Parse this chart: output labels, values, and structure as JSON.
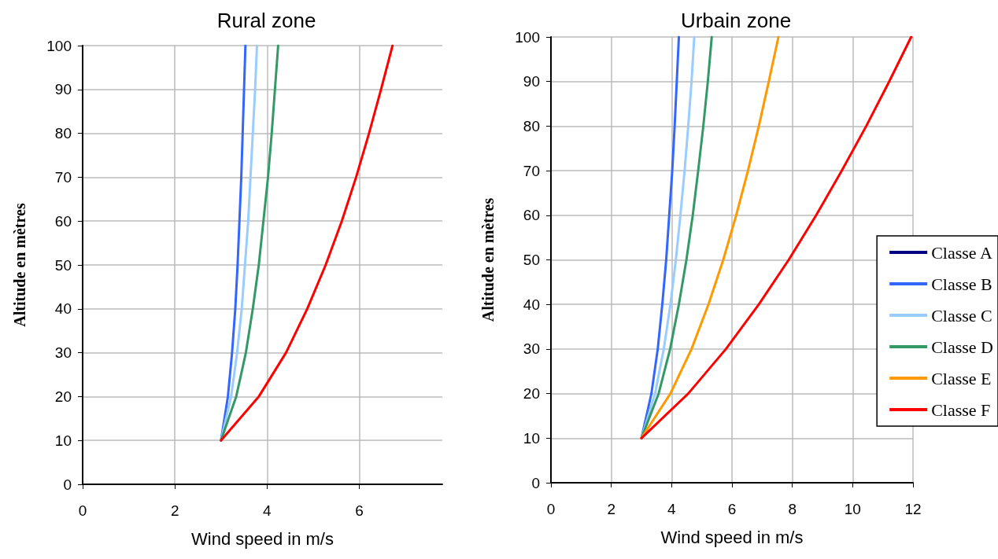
{
  "chart_data": [
    {
      "type": "line",
      "title": "Rural zone",
      "xlabel": "Wind speed in m/s",
      "ylabel": "Altitude en mètres",
      "xlim": [
        0,
        7.8
      ],
      "xticks": [
        0,
        2,
        4,
        6
      ],
      "ylim": [
        0,
        100
      ],
      "yticks": [
        0,
        10,
        20,
        30,
        40,
        50,
        60,
        70,
        80,
        90,
        100
      ],
      "grid": true,
      "legend": false,
      "marker": "none",
      "line_style": "solid",
      "series": [
        {
          "color": "#3366ff",
          "x": [
            3,
            3.15,
            3.24,
            3.31,
            3.36,
            3.4,
            3.44,
            3.47,
            3.5,
            3.53
          ],
          "values": [
            10,
            20,
            30,
            40,
            50,
            60,
            70,
            80,
            90,
            100
          ]
        },
        {
          "color": "#99ccff",
          "x": [
            3,
            3.22,
            3.35,
            3.45,
            3.52,
            3.59,
            3.64,
            3.69,
            3.74,
            3.78
          ],
          "values": [
            10,
            20,
            30,
            40,
            50,
            60,
            70,
            80,
            90,
            100
          ]
        },
        {
          "color": "#339966",
          "x": [
            3,
            3.33,
            3.54,
            3.69,
            3.82,
            3.92,
            4.02,
            4.1,
            4.17,
            4.24
          ],
          "values": [
            10,
            20,
            30,
            40,
            50,
            60,
            70,
            80,
            90,
            100
          ]
        },
        {
          "color": "#ff0000",
          "x": [
            3,
            3.82,
            4.41,
            4.87,
            5.27,
            5.62,
            5.93,
            6.21,
            6.47,
            6.72
          ],
          "values": [
            10,
            20,
            30,
            40,
            50,
            60,
            70,
            80,
            90,
            100
          ]
        }
      ]
    },
    {
      "type": "line",
      "title": "Urbain zone",
      "xlabel": "Wind speed in m/s",
      "ylabel": "Altitude en mètres",
      "xlim": [
        0,
        12
      ],
      "xticks": [
        0,
        2,
        4,
        6,
        8,
        10,
        12
      ],
      "ylim": [
        0,
        100
      ],
      "yticks": [
        0,
        10,
        20,
        30,
        40,
        50,
        60,
        70,
        80,
        90,
        100
      ],
      "grid": true,
      "legend": "right",
      "marker": "none",
      "line_style": "solid",
      "series": [
        {
          "name": "Classe A",
          "color": "#000080",
          "x": [
            null,
            null,
            null,
            null,
            null,
            null,
            null,
            null,
            null,
            null
          ],
          "values": [
            null,
            null,
            null,
            null,
            null,
            null,
            null,
            null,
            null,
            null
          ]
        },
        {
          "name": "Classe B",
          "color": "#3366ff",
          "x": [
            3,
            3.33,
            3.54,
            3.69,
            3.82,
            3.92,
            4.02,
            4.1,
            4.17,
            4.24
          ],
          "values": [
            10,
            20,
            30,
            40,
            50,
            60,
            70,
            80,
            90,
            100
          ]
        },
        {
          "name": "Classe C",
          "color": "#99ccff",
          "x": [
            3,
            3.45,
            3.74,
            3.96,
            4.14,
            4.29,
            4.43,
            4.55,
            4.66,
            4.75
          ],
          "values": [
            10,
            20,
            30,
            40,
            50,
            60,
            70,
            80,
            90,
            100
          ]
        },
        {
          "name": "Classe D",
          "color": "#339966",
          "x": [
            3,
            3.57,
            3.95,
            4.24,
            4.49,
            4.7,
            4.88,
            5.05,
            5.2,
            5.33
          ],
          "values": [
            10,
            20,
            30,
            40,
            50,
            60,
            70,
            80,
            90,
            100
          ]
        },
        {
          "name": "Classe E",
          "color": "#ff9900",
          "x": [
            3,
            3.96,
            4.66,
            5.22,
            5.71,
            6.14,
            6.53,
            6.89,
            7.22,
            7.54
          ],
          "values": [
            10,
            20,
            30,
            40,
            50,
            60,
            70,
            80,
            90,
            100
          ]
        },
        {
          "name": "Classe F",
          "color": "#ff0000",
          "x": [
            3,
            4.55,
            5.8,
            6.89,
            7.88,
            8.79,
            9.64,
            10.45,
            11.21,
            11.94
          ],
          "values": [
            10,
            20,
            30,
            40,
            50,
            60,
            70,
            80,
            90,
            100
          ]
        }
      ]
    }
  ]
}
